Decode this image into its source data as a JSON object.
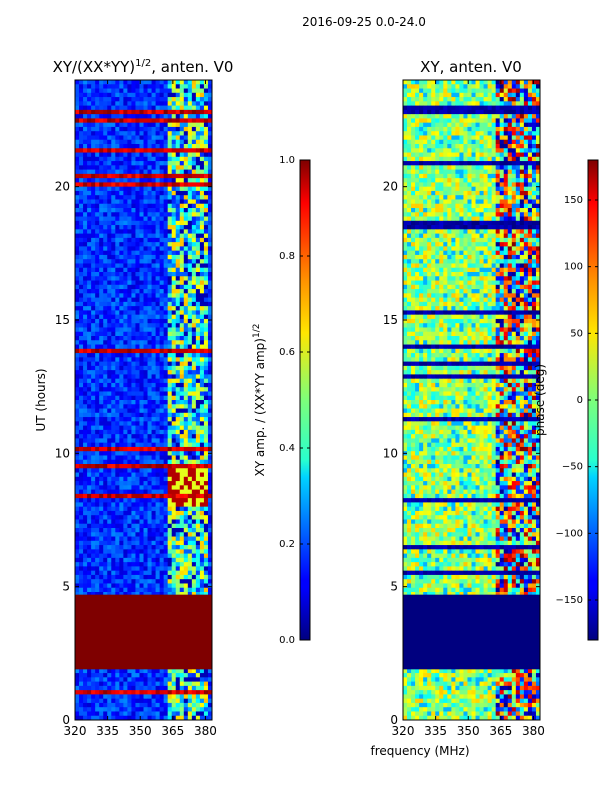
{
  "figure": {
    "suptitle": "2016-09-25 0.0-24.0",
    "xlabel": "frequency (MHz)"
  },
  "chart_data": [
    {
      "type": "heatmap",
      "title_main": "XY/(XX*YY)",
      "title_sup": "1/2",
      "title_rest": ", anten. V0",
      "ylabel": "UT (hours)",
      "xlim": [
        320,
        383
      ],
      "ylim": [
        0,
        24
      ],
      "xticks": [
        320,
        335,
        350,
        365,
        380
      ],
      "yticks": [
        0,
        5,
        10,
        15,
        20
      ],
      "dominant_band": "signal 362-382 MHz",
      "saturated_hours": [
        1.9,
        4.7
      ],
      "colorbar": {
        "label_main": "XY amp. / (XX*YY amp)",
        "label_sup": "1/2",
        "range": [
          0.0,
          1.0
        ],
        "ticks": [
          "0.0",
          "0.2",
          "0.4",
          "0.6",
          "0.8",
          "1.0"
        ]
      }
    },
    {
      "type": "heatmap",
      "title": "XY, anten. V0",
      "xlim": [
        320,
        383
      ],
      "ylim": [
        0,
        24
      ],
      "xticks": [
        320,
        335,
        350,
        365,
        380
      ],
      "yticks": [
        0,
        5,
        10,
        15,
        20
      ],
      "blank_hours": [
        1.9,
        4.7
      ],
      "colorbar": {
        "label": "phase (deg)",
        "range": [
          -180,
          180
        ],
        "ticks": [
          "−150",
          "−100",
          "−50",
          "0",
          "50",
          "100",
          "150"
        ]
      }
    }
  ]
}
